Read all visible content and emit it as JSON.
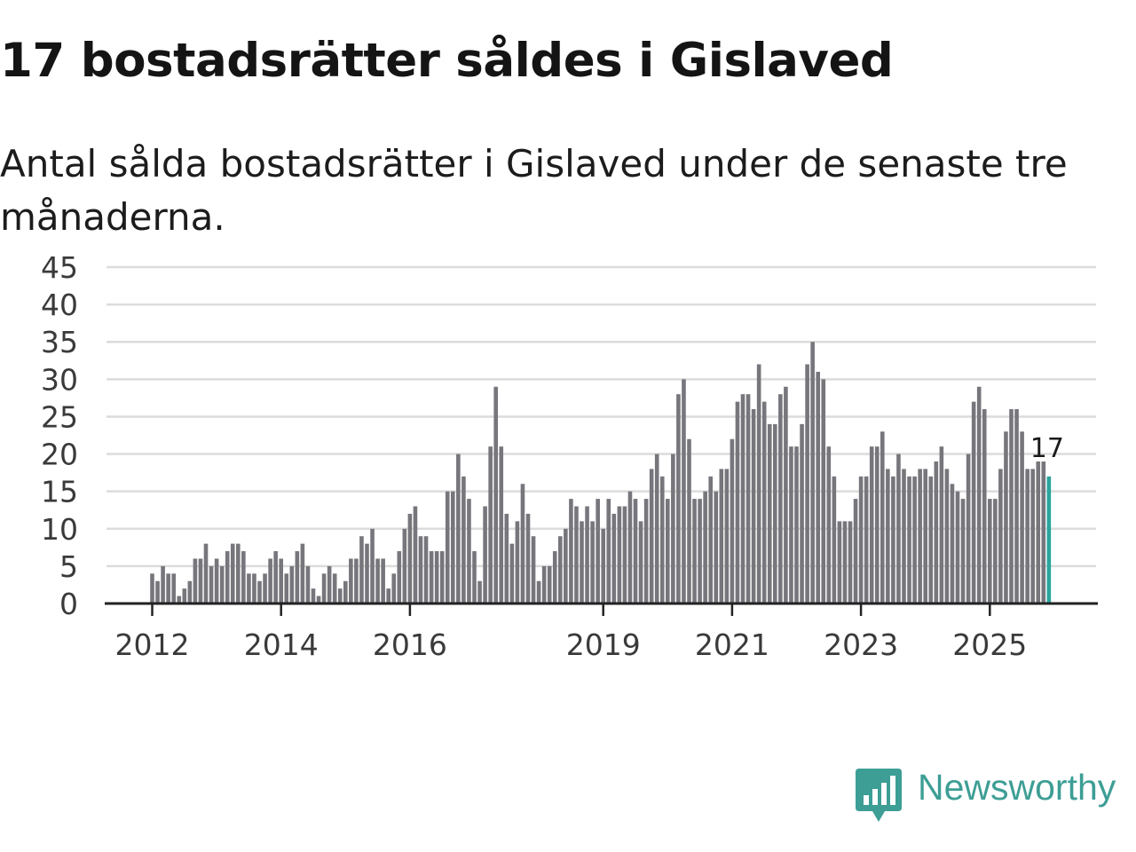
{
  "title": "17 bostadsrätter såldes i Gislaved",
  "subtitle": "Antal sålda bostadsrätter i Gislaved under de senaste tre månaderna.",
  "brand": {
    "name": "Newsworthy",
    "color": "#3d9e95",
    "icon": "newsworthy-logo-icon"
  },
  "colors": {
    "bar": "#77767c",
    "highlight": "#2aa59c",
    "grid": "#dcdcdc",
    "axis": "#222222"
  },
  "chart_data": {
    "type": "bar",
    "title": "17 bostadsrätter såldes i Gislaved",
    "xlabel": "",
    "ylabel": "",
    "ylim": [
      0,
      45
    ],
    "yticks": [
      0,
      5,
      10,
      15,
      20,
      25,
      30,
      35,
      40,
      45
    ],
    "xticks": [
      {
        "label": "2012",
        "index": 0
      },
      {
        "label": "2014",
        "index": 24
      },
      {
        "label": "2016",
        "index": 48
      },
      {
        "label": "2019",
        "index": 84
      },
      {
        "label": "2021",
        "index": 108
      },
      {
        "label": "2023",
        "index": 132
      },
      {
        "label": "2025",
        "index": 156
      }
    ],
    "start": "2012-01",
    "frequency": "monthly",
    "values": [
      4,
      3,
      5,
      4,
      4,
      1,
      2,
      3,
      6,
      6,
      8,
      5,
      6,
      5,
      7,
      8,
      8,
      7,
      4,
      4,
      3,
      4,
      6,
      7,
      6,
      4,
      5,
      7,
      8,
      5,
      2,
      1,
      4,
      5,
      4,
      2,
      3,
      6,
      6,
      9,
      8,
      10,
      6,
      6,
      2,
      4,
      7,
      10,
      12,
      13,
      9,
      9,
      7,
      7,
      7,
      15,
      15,
      20,
      17,
      14,
      7,
      3,
      13,
      21,
      29,
      21,
      12,
      8,
      11,
      16,
      12,
      9,
      3,
      5,
      5,
      7,
      9,
      10,
      14,
      13,
      11,
      13,
      11,
      14,
      10,
      14,
      12,
      13,
      13,
      15,
      14,
      11,
      14,
      18,
      20,
      17,
      14,
      20,
      28,
      30,
      22,
      14,
      14,
      15,
      17,
      15,
      18,
      18,
      22,
      27,
      28,
      28,
      26,
      32,
      27,
      24,
      24,
      28,
      29,
      21,
      21,
      24,
      32,
      35,
      31,
      30,
      21,
      17,
      11,
      11,
      11,
      14,
      17,
      17,
      21,
      21,
      23,
      18,
      17,
      20,
      18,
      17,
      17,
      18,
      18,
      17,
      19,
      21,
      18,
      16,
      15,
      14,
      20,
      27,
      29,
      26,
      14,
      14,
      18,
      23,
      26,
      26,
      23,
      18,
      18,
      19,
      19,
      17
    ],
    "highlight_last": true,
    "annotation": {
      "text": "17",
      "index": 167
    }
  }
}
